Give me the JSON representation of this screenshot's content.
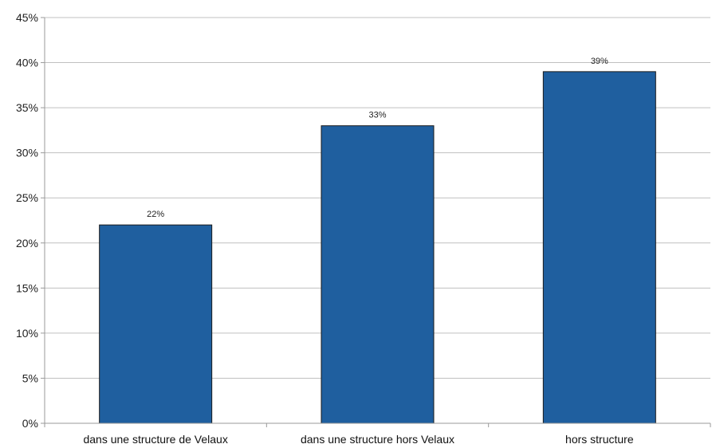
{
  "chart_data": {
    "type": "bar",
    "title": "",
    "xlabel": "",
    "ylabel": "",
    "categories": [
      "dans une structure de Velaux",
      "dans une structure hors Velaux",
      "hors structure"
    ],
    "values": [
      22,
      33,
      39
    ],
    "data_labels": [
      "22%",
      "33%",
      "39%"
    ],
    "ylim": [
      0,
      45
    ],
    "y_ticks": [
      0,
      5,
      10,
      15,
      20,
      25,
      30,
      35,
      40,
      45
    ],
    "y_tick_labels": [
      "0%",
      "5%",
      "10%",
      "15%",
      "20%",
      "25%",
      "30%",
      "35%",
      "40%",
      "45%"
    ],
    "grid": true,
    "legend": "none",
    "colors": {
      "bar_fill": "#1f5f9f",
      "bar_stroke": "#1a1a1a",
      "grid": "#c0c0c0",
      "axis": "#9a9a9a"
    }
  }
}
